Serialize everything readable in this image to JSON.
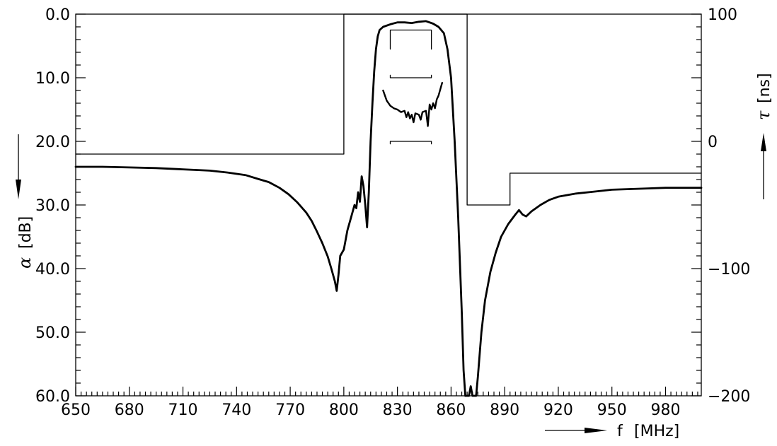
{
  "chart_data": {
    "type": "line",
    "x_axis": {
      "label": "[MHz]",
      "symbol": "f",
      "range": [
        650,
        1000
      ],
      "ticks": [
        650,
        680,
        710,
        740,
        770,
        800,
        830,
        860,
        890,
        920,
        950,
        980
      ],
      "tick_labels": [
        "650",
        "680",
        "710",
        "740",
        "770",
        "800",
        "830",
        "860",
        "890",
        "920",
        "950",
        "980"
      ],
      "minor_step": 3
    },
    "y_left": {
      "label": "[dB]",
      "symbol": "α",
      "range": [
        0,
        60
      ],
      "inverted": true,
      "ticks": [
        0,
        10,
        20,
        30,
        40,
        50,
        60
      ],
      "tick_labels": [
        "0.0",
        "10.0",
        "20.0",
        "30.0",
        "40.0",
        "50.0",
        "60.0"
      ],
      "minor_step": 2
    },
    "y_right": {
      "label": "[ns]",
      "symbol": "τ",
      "range": [
        -200,
        100
      ],
      "ticks": [
        100,
        0,
        -100,
        -200
      ],
      "tick_labels": [
        "100",
        "0",
        "−100",
        "−200"
      ],
      "minor_step": 10
    },
    "series": [
      {
        "role": "attenuation",
        "axis": "left",
        "points": [
          [
            650,
            24.0
          ],
          [
            665,
            24.0
          ],
          [
            680,
            24.1
          ],
          [
            695,
            24.2
          ],
          [
            710,
            24.4
          ],
          [
            725,
            24.6
          ],
          [
            735,
            24.9
          ],
          [
            745,
            25.3
          ],
          [
            752,
            25.9
          ],
          [
            758,
            26.4
          ],
          [
            764,
            27.3
          ],
          [
            769,
            28.3
          ],
          [
            774,
            29.6
          ],
          [
            779,
            31.2
          ],
          [
            782,
            32.5
          ],
          [
            785,
            34.2
          ],
          [
            788,
            36.0
          ],
          [
            791,
            38.1
          ],
          [
            793,
            40.0
          ],
          [
            795,
            42.0
          ],
          [
            796,
            43.5
          ],
          [
            797,
            41.0
          ],
          [
            798,
            38.0
          ],
          [
            800,
            37.0
          ],
          [
            802,
            34.0
          ],
          [
            804,
            32.0
          ],
          [
            806,
            30.0
          ],
          [
            807,
            30.5
          ],
          [
            808,
            28.0
          ],
          [
            809,
            29.5
          ],
          [
            810,
            25.5
          ],
          [
            811,
            27.0
          ],
          [
            812,
            30.0
          ],
          [
            813,
            33.5
          ],
          [
            814,
            28.0
          ],
          [
            815,
            20.0
          ],
          [
            816,
            14.0
          ],
          [
            817,
            9.0
          ],
          [
            818,
            5.5
          ],
          [
            819,
            3.5
          ],
          [
            820,
            2.5
          ],
          [
            822,
            2.0
          ],
          [
            826,
            1.6
          ],
          [
            830,
            1.3
          ],
          [
            834,
            1.3
          ],
          [
            838,
            1.4
          ],
          [
            842,
            1.2
          ],
          [
            846,
            1.1
          ],
          [
            850,
            1.5
          ],
          [
            853,
            2.0
          ],
          [
            856,
            3.0
          ],
          [
            858,
            5.5
          ],
          [
            860,
            10.0
          ],
          [
            862,
            20.0
          ],
          [
            864,
            32.0
          ],
          [
            866,
            47.0
          ],
          [
            867,
            56.0
          ],
          [
            868,
            60.0
          ],
          [
            870,
            60.0
          ],
          [
            871,
            58.5
          ],
          [
            872,
            60.0
          ],
          [
            874,
            60.0
          ],
          [
            875,
            57.0
          ],
          [
            877,
            50.0
          ],
          [
            879,
            45.0
          ],
          [
            882,
            40.5
          ],
          [
            885,
            37.5
          ],
          [
            888,
            35.0
          ],
          [
            892,
            33.0
          ],
          [
            896,
            31.5
          ],
          [
            898,
            30.8
          ],
          [
            900,
            31.5
          ],
          [
            902,
            31.8
          ],
          [
            905,
            31.0
          ],
          [
            910,
            30.0
          ],
          [
            915,
            29.2
          ],
          [
            920,
            28.7
          ],
          [
            930,
            28.2
          ],
          [
            940,
            27.9
          ],
          [
            950,
            27.6
          ],
          [
            960,
            27.5
          ],
          [
            970,
            27.4
          ],
          [
            980,
            27.3
          ],
          [
            990,
            27.3
          ],
          [
            1000,
            27.3
          ]
        ]
      },
      {
        "role": "passband group delay",
        "axis": "right",
        "points": [
          [
            822,
            40.0
          ],
          [
            824,
            32.0
          ],
          [
            826,
            28.0
          ],
          [
            828,
            26.0
          ],
          [
            830,
            25.0
          ],
          [
            832,
            23.0
          ],
          [
            834,
            24.0
          ],
          [
            835,
            19.0
          ],
          [
            836,
            23.0
          ],
          [
            837,
            18.0
          ],
          [
            838,
            21.0
          ],
          [
            839,
            15.0
          ],
          [
            840,
            22.0
          ],
          [
            842,
            21.0
          ],
          [
            843,
            17.0
          ],
          [
            844,
            23.0
          ],
          [
            846,
            24.0
          ],
          [
            847,
            12.0
          ],
          [
            848,
            29.0
          ],
          [
            849,
            25.0
          ],
          [
            850,
            30.0
          ],
          [
            851,
            26.0
          ],
          [
            852,
            33.0
          ],
          [
            853,
            36.0
          ],
          [
            855,
            46.0
          ]
        ]
      },
      {
        "role": "attenuation tolerance mask",
        "axis": "left",
        "points": [
          [
            650,
            22.0
          ],
          [
            800,
            22.0
          ],
          [
            800,
            0.0
          ],
          [
            869,
            0.0
          ],
          [
            869,
            30.0
          ],
          [
            893,
            30.0
          ],
          [
            893,
            25.0
          ],
          [
            1000,
            25.0
          ]
        ]
      },
      {
        "role": "passband attenuation limit",
        "axis": "left",
        "points": [
          [
            826,
            5.5
          ],
          [
            826,
            2.5
          ],
          [
            849,
            2.5
          ],
          [
            849,
            5.5
          ]
        ]
      },
      {
        "role": "group delay upper limit",
        "axis": "right",
        "points": [
          [
            826,
            52.0
          ],
          [
            826,
            50.0
          ],
          [
            849,
            50.0
          ],
          [
            849,
            52.0
          ]
        ]
      },
      {
        "role": "group delay lower limit",
        "axis": "right",
        "points": [
          [
            826,
            -2.0
          ],
          [
            826,
            0.0
          ],
          [
            849,
            0.0
          ],
          [
            849,
            -2.0
          ]
        ]
      }
    ],
    "grid": false,
    "legend": "none"
  }
}
